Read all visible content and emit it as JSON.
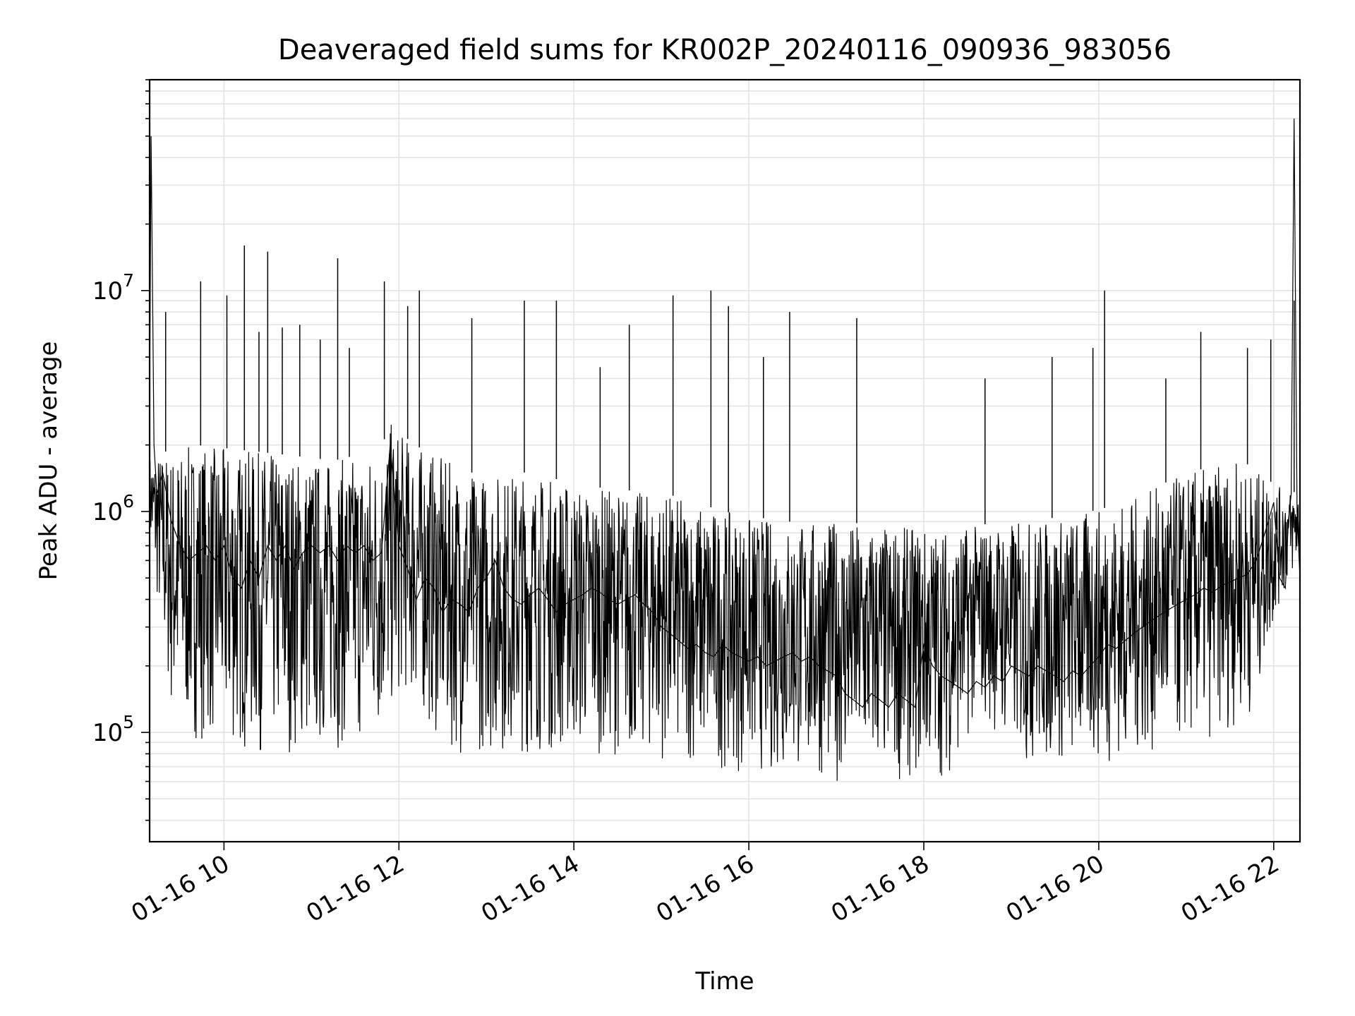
{
  "chart_data": {
    "type": "line",
    "title": "Deaveraged field sums for KR002P_20240116_090936_983056",
    "xlabel": "Time",
    "ylabel": "Peak ADU - average",
    "x_axis_type": "datetime",
    "x_range": [
      "2024-01-16 09:09",
      "2024-01-16 22:18"
    ],
    "x_ticks": [
      {
        "value": "2024-01-16 10:00",
        "label": "01-16 10"
      },
      {
        "value": "2024-01-16 12:00",
        "label": "01-16 12"
      },
      {
        "value": "2024-01-16 14:00",
        "label": "01-16 14"
      },
      {
        "value": "2024-01-16 16:00",
        "label": "01-16 16"
      },
      {
        "value": "2024-01-16 18:00",
        "label": "01-16 18"
      },
      {
        "value": "2024-01-16 20:00",
        "label": "01-16 20"
      },
      {
        "value": "2024-01-16 22:00",
        "label": "01-16 22"
      }
    ],
    "y_scale": "log",
    "ylim": [
      32000,
      90000000
    ],
    "y_ticks": [
      {
        "value": 100000,
        "base": "10",
        "exp": "5"
      },
      {
        "value": 1000000,
        "base": "10",
        "exp": "6"
      },
      {
        "value": 10000000,
        "base": "10",
        "exp": "7"
      }
    ],
    "grid": true,
    "line_color": "#000000",
    "series": [
      {
        "x": [
          "2024-01-16 09:09",
          "2024-01-16 09:10",
          "2024-01-16 09:12",
          "2024-01-16 09:14",
          "2024-01-16 09:18",
          "2024-01-16 09:24",
          "2024-01-16 09:30",
          "2024-01-16 09:36",
          "2024-01-16 09:42",
          "2024-01-16 09:48",
          "2024-01-16 09:54",
          "2024-01-16 10:00",
          "2024-01-16 10:06",
          "2024-01-16 10:12",
          "2024-01-16 10:18",
          "2024-01-16 10:24",
          "2024-01-16 10:30",
          "2024-01-16 10:36",
          "2024-01-16 10:42",
          "2024-01-16 10:48",
          "2024-01-16 10:54",
          "2024-01-16 11:00",
          "2024-01-16 11:06",
          "2024-01-16 11:12",
          "2024-01-16 11:18",
          "2024-01-16 11:24",
          "2024-01-16 11:30",
          "2024-01-16 11:36",
          "2024-01-16 11:42",
          "2024-01-16 11:48",
          "2024-01-16 11:54",
          "2024-01-16 12:00",
          "2024-01-16 12:06",
          "2024-01-16 12:12",
          "2024-01-16 12:18",
          "2024-01-16 12:24",
          "2024-01-16 12:30",
          "2024-01-16 12:36",
          "2024-01-16 12:42",
          "2024-01-16 12:48",
          "2024-01-16 12:54",
          "2024-01-16 13:00",
          "2024-01-16 13:06",
          "2024-01-16 13:12",
          "2024-01-16 13:18",
          "2024-01-16 13:24",
          "2024-01-16 13:30",
          "2024-01-16 13:36",
          "2024-01-16 13:42",
          "2024-01-16 13:48",
          "2024-01-16 13:54",
          "2024-01-16 14:00",
          "2024-01-16 14:06",
          "2024-01-16 14:12",
          "2024-01-16 14:18",
          "2024-01-16 14:24",
          "2024-01-16 14:30",
          "2024-01-16 14:36",
          "2024-01-16 14:42",
          "2024-01-16 14:48",
          "2024-01-16 14:54",
          "2024-01-16 15:00",
          "2024-01-16 15:06",
          "2024-01-16 15:12",
          "2024-01-16 15:18",
          "2024-01-16 15:24",
          "2024-01-16 15:30",
          "2024-01-16 15:36",
          "2024-01-16 15:42",
          "2024-01-16 15:48",
          "2024-01-16 15:54",
          "2024-01-16 16:00",
          "2024-01-16 16:06",
          "2024-01-16 16:12",
          "2024-01-16 16:18",
          "2024-01-16 16:24",
          "2024-01-16 16:30",
          "2024-01-16 16:36",
          "2024-01-16 16:42",
          "2024-01-16 16:48",
          "2024-01-16 16:54",
          "2024-01-16 17:00",
          "2024-01-16 17:06",
          "2024-01-16 17:12",
          "2024-01-16 17:18",
          "2024-01-16 17:24",
          "2024-01-16 17:30",
          "2024-01-16 17:36",
          "2024-01-16 17:42",
          "2024-01-16 17:48",
          "2024-01-16 17:54",
          "2024-01-16 18:00",
          "2024-01-16 18:06",
          "2024-01-16 18:12",
          "2024-01-16 18:18",
          "2024-01-16 18:24",
          "2024-01-16 18:30",
          "2024-01-16 18:36",
          "2024-01-16 18:42",
          "2024-01-16 18:48",
          "2024-01-16 18:54",
          "2024-01-16 19:00",
          "2024-01-16 19:06",
          "2024-01-16 19:12",
          "2024-01-16 19:18",
          "2024-01-16 19:24",
          "2024-01-16 19:30",
          "2024-01-16 19:36",
          "2024-01-16 19:42",
          "2024-01-16 19:48",
          "2024-01-16 19:54",
          "2024-01-16 20:00",
          "2024-01-16 20:06",
          "2024-01-16 20:12",
          "2024-01-16 20:18",
          "2024-01-16 20:24",
          "2024-01-16 20:30",
          "2024-01-16 20:36",
          "2024-01-16 20:42",
          "2024-01-16 20:48",
          "2024-01-16 20:54",
          "2024-01-16 21:00",
          "2024-01-16 21:06",
          "2024-01-16 21:12",
          "2024-01-16 21:18",
          "2024-01-16 21:24",
          "2024-01-16 21:30",
          "2024-01-16 21:36",
          "2024-01-16 21:42",
          "2024-01-16 21:48",
          "2024-01-16 21:54",
          "2024-01-16 22:00",
          "2024-01-16 22:04",
          "2024-01-16 22:08",
          "2024-01-16 22:10",
          "2024-01-16 22:12",
          "2024-01-16 22:14",
          "2024-01-16 22:16",
          "2024-01-16 22:18"
        ],
        "y": [
          3000000,
          50000000,
          2000000,
          1200000,
          1500000,
          900000,
          700000,
          600000,
          650000,
          700000,
          600000,
          700000,
          500000,
          450000,
          600000,
          500000,
          700000,
          600000,
          700000,
          550000,
          650000,
          700000,
          650000,
          700000,
          600000,
          700000,
          650000,
          700000,
          600000,
          650000,
          2000000,
          700000,
          550000,
          400000,
          500000,
          450000,
          350000,
          400000,
          380000,
          350000,
          450000,
          500000,
          600000,
          450000,
          400000,
          380000,
          420000,
          450000,
          400000,
          350000,
          380000,
          400000,
          420000,
          450000,
          430000,
          400000,
          380000,
          400000,
          420000,
          380000,
          350000,
          300000,
          280000,
          260000,
          240000,
          250000,
          230000,
          220000,
          250000,
          230000,
          220000,
          210000,
          220000,
          200000,
          210000,
          220000,
          230000,
          210000,
          220000,
          200000,
          190000,
          180000,
          150000,
          140000,
          130000,
          150000,
          140000,
          130000,
          150000,
          140000,
          130000,
          250000,
          200000,
          180000,
          170000,
          160000,
          150000,
          170000,
          160000,
          180000,
          170000,
          200000,
          190000,
          180000,
          200000,
          190000,
          180000,
          170000,
          190000,
          180000,
          200000,
          220000,
          250000,
          240000,
          260000,
          280000,
          300000,
          320000,
          340000,
          360000,
          380000,
          400000,
          420000,
          450000,
          430000,
          460000,
          480000,
          500000,
          520000,
          600000,
          800000,
          1100000,
          500000,
          450000,
          900000,
          1200000,
          60000000,
          1000000,
          500000
        ]
      }
    ],
    "visual_envelope": {
      "upper": [
        [
          0,
          1800000
        ],
        [
          0.04,
          2000000
        ],
        [
          0.08,
          1900000
        ],
        [
          0.12,
          1800000
        ],
        [
          0.16,
          1700000
        ],
        [
          0.2,
          1900000
        ],
        [
          0.21,
          2500000
        ],
        [
          0.23,
          2000000
        ],
        [
          0.28,
          1500000
        ],
        [
          0.33,
          1500000
        ],
        [
          0.38,
          1300000
        ],
        [
          0.45,
          1200000
        ],
        [
          0.5,
          1000000
        ],
        [
          0.55,
          900000
        ],
        [
          0.6,
          900000
        ],
        [
          0.65,
          850000
        ],
        [
          0.7,
          850000
        ],
        [
          0.75,
          900000
        ],
        [
          0.8,
          950000
        ],
        [
          0.85,
          1100000
        ],
        [
          0.9,
          1500000
        ],
        [
          0.95,
          1700000
        ],
        [
          0.98,
          1300000
        ],
        [
          1,
          1200000
        ]
      ],
      "lower": [
        [
          0,
          700000
        ],
        [
          0.02,
          100000
        ],
        [
          0.08,
          80000
        ],
        [
          0.14,
          80000
        ],
        [
          0.2,
          90000
        ],
        [
          0.22,
          150000
        ],
        [
          0.26,
          80000
        ],
        [
          0.33,
          80000
        ],
        [
          0.4,
          80000
        ],
        [
          0.48,
          70000
        ],
        [
          0.52,
          65000
        ],
        [
          0.6,
          60000
        ],
        [
          0.66,
          60000
        ],
        [
          0.7,
          65000
        ],
        [
          0.72,
          120000
        ],
        [
          0.76,
          70000
        ],
        [
          0.82,
          70000
        ],
        [
          0.88,
          80000
        ],
        [
          0.92,
          90000
        ],
        [
          0.96,
          120000
        ],
        [
          0.98,
          350000
        ],
        [
          1,
          600000
        ]
      ]
    },
    "spikes": [
      [
        "2024-01-16 09:20",
        8000000
      ],
      [
        "2024-01-16 09:44",
        11000000
      ],
      [
        "2024-01-16 10:02",
        9500000
      ],
      [
        "2024-01-16 10:14",
        16000000
      ],
      [
        "2024-01-16 10:24",
        6500000
      ],
      [
        "2024-01-16 10:30",
        15000000
      ],
      [
        "2024-01-16 10:40",
        6800000
      ],
      [
        "2024-01-16 10:52",
        7000000
      ],
      [
        "2024-01-16 11:06",
        6000000
      ],
      [
        "2024-01-16 11:18",
        14000000
      ],
      [
        "2024-01-16 11:26",
        5500000
      ],
      [
        "2024-01-16 11:50",
        11000000
      ],
      [
        "2024-01-16 12:06",
        8500000
      ],
      [
        "2024-01-16 12:14",
        10000000
      ],
      [
        "2024-01-16 12:50",
        7500000
      ],
      [
        "2024-01-16 13:26",
        9000000
      ],
      [
        "2024-01-16 13:48",
        9000000
      ],
      [
        "2024-01-16 14:18",
        4500000
      ],
      [
        "2024-01-16 14:38",
        7000000
      ],
      [
        "2024-01-16 15:08",
        9500000
      ],
      [
        "2024-01-16 15:34",
        10000000
      ],
      [
        "2024-01-16 15:46",
        8500000
      ],
      [
        "2024-01-16 16:10",
        5000000
      ],
      [
        "2024-01-16 16:28",
        8000000
      ],
      [
        "2024-01-16 17:14",
        7500000
      ],
      [
        "2024-01-16 18:42",
        4000000
      ],
      [
        "2024-01-16 19:28",
        5000000
      ],
      [
        "2024-01-16 19:56",
        5500000
      ],
      [
        "2024-01-16 20:04",
        10000000
      ],
      [
        "2024-01-16 20:46",
        4000000
      ],
      [
        "2024-01-16 21:10",
        6500000
      ],
      [
        "2024-01-16 21:42",
        5500000
      ],
      [
        "2024-01-16 21:58",
        6000000
      ],
      [
        "2024-01-16 22:14",
        9000000
      ]
    ]
  }
}
